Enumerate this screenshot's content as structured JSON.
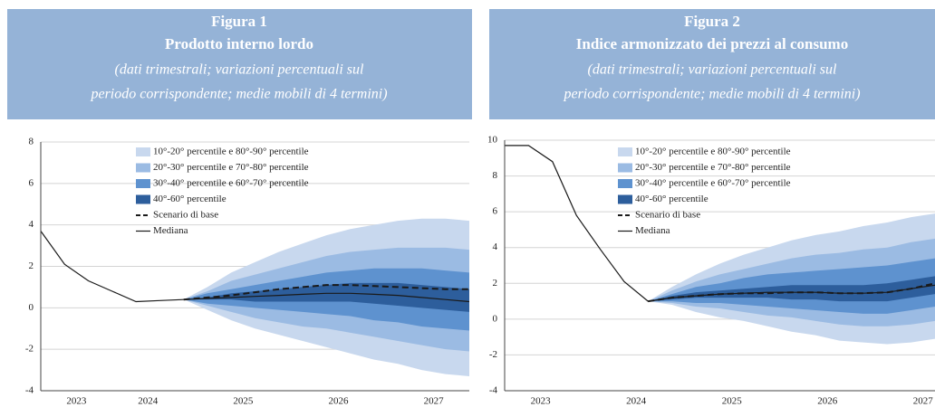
{
  "chart_data": [
    {
      "type": "fan",
      "title": "Figura 1",
      "subtitle": "Prodotto interno lordo",
      "notes": [
        "(dati trimestrali; variazioni percentuali sul",
        "periodo corrispondente; medie mobili di 4 termini)"
      ],
      "categories": [
        null,
        "2023",
        null,
        null,
        "2024",
        null,
        null,
        null,
        "2025",
        null,
        null,
        null,
        "2026",
        null,
        null,
        null,
        "2027",
        null,
        null
      ],
      "ylim": [
        -4,
        8
      ],
      "yticks": [
        -4,
        -2,
        0,
        2,
        4,
        6,
        8
      ],
      "grid": true,
      "bands": [
        {
          "name": "10°-20° percentile e 80°-90° percentile",
          "color": "#c8d8ee",
          "lower": [
            null,
            null,
            null,
            null,
            null,
            null,
            0.4,
            -0.1,
            -0.6,
            -1.0,
            -1.3,
            -1.6,
            -1.9,
            -2.2,
            -2.5,
            -2.7,
            -3.0,
            -3.2,
            -3.3
          ],
          "upper": [
            null,
            null,
            null,
            null,
            null,
            null,
            0.4,
            1.0,
            1.7,
            2.2,
            2.7,
            3.1,
            3.5,
            3.8,
            4.0,
            4.2,
            4.3,
            4.3,
            4.2
          ]
        },
        {
          "name": "20°-30° percentile e 70°-80° percentile",
          "color": "#9bbbe3",
          "lower": [
            null,
            null,
            null,
            null,
            null,
            null,
            0.4,
            0.1,
            -0.2,
            -0.5,
            -0.7,
            -0.9,
            -1.0,
            -1.2,
            -1.4,
            -1.6,
            -1.8,
            -2.0,
            -2.1
          ],
          "upper": [
            null,
            null,
            null,
            null,
            null,
            null,
            0.4,
            0.8,
            1.3,
            1.6,
            1.9,
            2.2,
            2.5,
            2.7,
            2.8,
            2.9,
            2.9,
            2.9,
            2.8
          ]
        },
        {
          "name": "30°-40° percentile e 60°-70° percentile",
          "color": "#5e92cf",
          "lower": [
            null,
            null,
            null,
            null,
            null,
            null,
            0.4,
            0.2,
            0.1,
            0.0,
            -0.1,
            -0.2,
            -0.3,
            -0.4,
            -0.6,
            -0.7,
            -0.9,
            -1.0,
            -1.1
          ],
          "upper": [
            null,
            null,
            null,
            null,
            null,
            null,
            0.4,
            0.7,
            0.9,
            1.1,
            1.3,
            1.5,
            1.7,
            1.8,
            1.9,
            1.9,
            1.9,
            1.8,
            1.7
          ]
        },
        {
          "name": "40°-60° percentile",
          "color": "#2d5e9c",
          "lower": [
            null,
            null,
            null,
            null,
            null,
            null,
            0.4,
            0.4,
            0.4,
            0.3,
            0.3,
            0.3,
            0.3,
            0.3,
            0.2,
            0.1,
            0.0,
            -0.1,
            -0.2
          ],
          "upper": [
            null,
            null,
            null,
            null,
            null,
            null,
            0.4,
            0.5,
            0.7,
            0.8,
            0.9,
            1.0,
            1.1,
            1.2,
            1.2,
            1.2,
            1.1,
            1.0,
            0.9
          ]
        }
      ],
      "series": [
        {
          "name": "Scenario di base",
          "color": "#1a1a1a",
          "dashed": true,
          "values": [
            null,
            null,
            null,
            null,
            null,
            null,
            0.4,
            0.5,
            0.6,
            0.75,
            0.9,
            1.0,
            1.1,
            1.1,
            1.05,
            1.0,
            0.95,
            0.9,
            0.9
          ]
        },
        {
          "name": "Mediana",
          "color": "#1a1a1a",
          "values": [
            3.7,
            2.1,
            1.3,
            0.8,
            0.3,
            0.35,
            0.4,
            0.45,
            0.5,
            0.55,
            0.6,
            0.65,
            0.7,
            0.7,
            0.65,
            0.6,
            0.5,
            0.4,
            0.3
          ]
        }
      ]
    },
    {
      "type": "fan",
      "title": "Figura 2",
      "subtitle": "Indice armonizzato dei prezzi al consumo",
      "notes": [
        "(dati trimestrali; variazioni percentuali sul",
        "periodo corrispondente; medie mobili di 4 termini)"
      ],
      "categories": [
        null,
        "2023",
        null,
        null,
        null,
        "2024",
        null,
        null,
        null,
        "2025",
        null,
        null,
        null,
        "2026",
        null,
        null,
        null,
        "2027",
        null
      ],
      "ylim": [
        -4,
        10
      ],
      "yticks": [
        -4,
        -2,
        0,
        2,
        4,
        6,
        8,
        10
      ],
      "grid": true,
      "bands": [
        {
          "name": "10°-20° percentile e 80°-90° percentile",
          "color": "#c8d8ee",
          "lower": [
            null,
            null,
            null,
            null,
            null,
            null,
            1.0,
            0.8,
            0.4,
            0.1,
            -0.1,
            -0.4,
            -0.7,
            -0.9,
            -1.2,
            -1.3,
            -1.4,
            -1.3,
            -1.1
          ],
          "upper": [
            null,
            null,
            null,
            null,
            null,
            null,
            1.0,
            1.8,
            2.5,
            3.1,
            3.6,
            4.0,
            4.4,
            4.7,
            4.9,
            5.2,
            5.4,
            5.7,
            5.9
          ]
        },
        {
          "name": "20°-30° percentile e 70°-80° percentile",
          "color": "#9bbbe3",
          "lower": [
            null,
            null,
            null,
            null,
            null,
            null,
            1.0,
            0.9,
            0.7,
            0.6,
            0.4,
            0.2,
            0.1,
            -0.1,
            -0.3,
            -0.4,
            -0.4,
            -0.3,
            -0.1
          ],
          "upper": [
            null,
            null,
            null,
            null,
            null,
            null,
            1.0,
            1.6,
            2.1,
            2.5,
            2.8,
            3.1,
            3.4,
            3.6,
            3.7,
            3.9,
            4.0,
            4.3,
            4.5
          ]
        },
        {
          "name": "30°-40° percentile e 60°-70° percentile",
          "color": "#5e92cf",
          "lower": [
            null,
            null,
            null,
            null,
            null,
            null,
            1.0,
            1.0,
            0.9,
            0.9,
            0.8,
            0.7,
            0.6,
            0.5,
            0.4,
            0.3,
            0.3,
            0.5,
            0.7
          ],
          "upper": [
            null,
            null,
            null,
            null,
            null,
            null,
            1.0,
            1.4,
            1.8,
            2.0,
            2.3,
            2.5,
            2.6,
            2.7,
            2.8,
            2.9,
            3.0,
            3.2,
            3.4
          ]
        },
        {
          "name": "40°-60° percentile",
          "color": "#2d5e9c",
          "lower": [
            null,
            null,
            null,
            null,
            null,
            null,
            1.0,
            1.1,
            1.2,
            1.2,
            1.2,
            1.2,
            1.1,
            1.1,
            1.0,
            1.0,
            1.0,
            1.2,
            1.4
          ],
          "upper": [
            null,
            null,
            null,
            null,
            null,
            null,
            1.0,
            1.3,
            1.5,
            1.6,
            1.7,
            1.8,
            1.9,
            1.9,
            1.9,
            1.9,
            2.0,
            2.2,
            2.4
          ]
        }
      ],
      "series": [
        {
          "name": "Scenario di base",
          "color": "#1a1a1a",
          "dashed": true,
          "values": [
            null,
            null,
            null,
            null,
            null,
            null,
            1.0,
            1.2,
            1.3,
            1.4,
            1.45,
            1.45,
            1.5,
            1.5,
            1.45,
            1.45,
            1.5,
            1.7,
            2.0
          ]
        },
        {
          "name": "Mediana",
          "color": "#1a1a1a",
          "values": [
            9.7,
            9.7,
            8.8,
            5.8,
            3.9,
            2.1,
            1.0,
            1.2,
            1.3,
            1.4,
            1.45,
            1.5,
            1.5,
            1.5,
            1.45,
            1.45,
            1.5,
            1.7,
            1.9
          ]
        }
      ]
    }
  ]
}
